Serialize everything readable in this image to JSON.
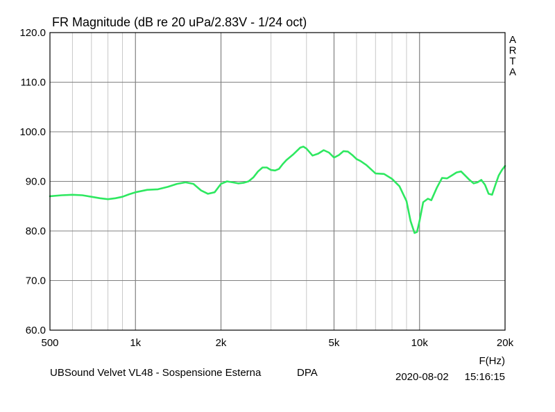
{
  "chart_data": {
    "type": "line",
    "title": "FR Magnitude (dB re 20 uPa/2.83V - 1/24 oct)",
    "xlabel": "F(Hz)",
    "ylabel": "",
    "x_scale": "log",
    "xlim": [
      500,
      20000
    ],
    "ylim": [
      60,
      120
    ],
    "grid": true,
    "x_ticks": [
      {
        "value": 500,
        "label": "500"
      },
      {
        "value": 1000,
        "label": "1k"
      },
      {
        "value": 2000,
        "label": "2k"
      },
      {
        "value": 5000,
        "label": "5k"
      },
      {
        "value": 10000,
        "label": "10k"
      },
      {
        "value": 20000,
        "label": "20k"
      }
    ],
    "y_ticks": [
      {
        "value": 60,
        "label": "60.0"
      },
      {
        "value": 70,
        "label": "70.0"
      },
      {
        "value": 80,
        "label": "80.0"
      },
      {
        "value": 90,
        "label": "90.0"
      },
      {
        "value": 100,
        "label": "100.0"
      },
      {
        "value": 110,
        "label": "110.0"
      },
      {
        "value": 120,
        "label": "120.0"
      }
    ],
    "series": [
      {
        "color": "#2ee860",
        "x": [
          500,
          550,
          600,
          650,
          700,
          750,
          800,
          850,
          900,
          950,
          1000,
          1100,
          1200,
          1300,
          1400,
          1500,
          1600,
          1700,
          1800,
          1900,
          2000,
          2100,
          2200,
          2300,
          2400,
          2500,
          2600,
          2700,
          2800,
          2900,
          3000,
          3100,
          3200,
          3300,
          3400,
          3600,
          3800,
          3900,
          4000,
          4200,
          4400,
          4600,
          4800,
          5000,
          5200,
          5400,
          5600,
          5800,
          6000,
          6200,
          6500,
          7000,
          7500,
          8000,
          8500,
          9000,
          9300,
          9600,
          9800,
          10000,
          10300,
          10700,
          11000,
          11500,
          12000,
          12500,
          13000,
          13500,
          14000,
          15000,
          15500,
          16000,
          16500,
          17000,
          17500,
          18000,
          18500,
          19000,
          19500,
          20000
        ],
        "y": [
          87.0,
          87.2,
          87.3,
          87.2,
          86.9,
          86.6,
          86.4,
          86.6,
          86.9,
          87.4,
          87.8,
          88.3,
          88.4,
          88.9,
          89.5,
          89.8,
          89.5,
          88.2,
          87.5,
          87.8,
          89.5,
          90.0,
          89.8,
          89.6,
          89.7,
          90.0,
          90.8,
          92.0,
          92.8,
          92.8,
          92.3,
          92.2,
          92.5,
          93.5,
          94.3,
          95.5,
          96.8,
          97.0,
          96.6,
          95.2,
          95.6,
          96.3,
          95.8,
          94.8,
          95.3,
          96.1,
          96.0,
          95.3,
          94.5,
          94.1,
          93.3,
          91.6,
          91.5,
          90.5,
          89.0,
          86.0,
          82.0,
          79.6,
          79.8,
          82.0,
          85.8,
          86.5,
          86.2,
          88.7,
          90.7,
          90.6,
          91.2,
          91.8,
          92.0,
          90.3,
          89.6,
          89.8,
          90.3,
          89.3,
          87.5,
          87.3,
          89.3,
          91.2,
          92.3,
          93.1
        ]
      }
    ]
  },
  "overlay": {
    "watermark": [
      "A",
      "R",
      "T",
      "A"
    ],
    "device_label": "UBSound Velvet VL48 - Sospensione Esterna",
    "mic_label": "DPA",
    "date": "2020-08-02",
    "time": "15:16:15"
  },
  "colors": {
    "grid": "#c8c8c8",
    "frame": "#000000",
    "curve": "#2ee860"
  }
}
